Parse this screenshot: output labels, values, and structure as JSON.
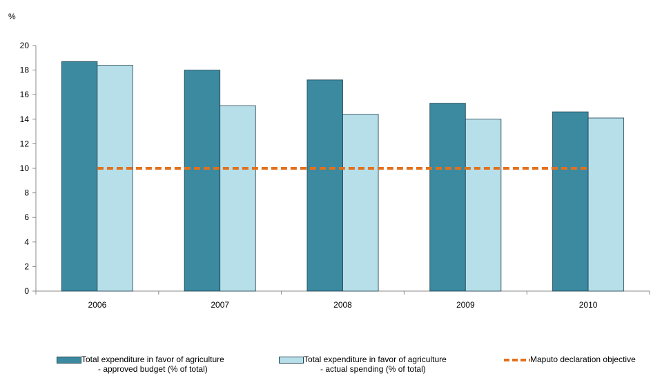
{
  "chart_data": {
    "type": "bar",
    "unit_label": "%",
    "categories": [
      "2006",
      "2007",
      "2008",
      "2009",
      "2010"
    ],
    "series": [
      {
        "name_line1": "Total expenditure in favor of agriculture",
        "name_line2": "- approved budget (% of total)",
        "color": "#3b8aa0",
        "values": [
          18.7,
          18.0,
          17.2,
          15.3,
          14.6
        ]
      },
      {
        "name_line1": "Total expenditure in favor of agriculture",
        "name_line2": "- actual spending (% of total)",
        "color": "#b7dfe9",
        "values": [
          18.4,
          15.1,
          14.4,
          14.0,
          14.1
        ]
      }
    ],
    "reference_line": {
      "name": "Maputo declaration objective",
      "value": 10,
      "color": "#e2711d",
      "style": "dashed"
    },
    "y_ticks": [
      "0",
      "2",
      "4",
      "6",
      "8",
      "10",
      "12",
      "14",
      "16",
      "18",
      "20"
    ],
    "ylim": [
      0,
      20
    ],
    "grid": false,
    "legend_position": "bottom"
  }
}
